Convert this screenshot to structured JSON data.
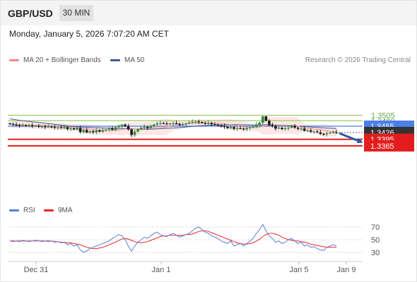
{
  "header": {
    "symbol": "GBP/USD",
    "timeframe": "30 MIN"
  },
  "datetime": "Monday, January 5, 2026 7:07:20 AM CET",
  "legend_main": [
    {
      "label": "MA 20 + Bollinger Bands",
      "color": "#f28b82"
    },
    {
      "label": "MA 50",
      "color": "#3d5a98"
    }
  ],
  "credit": "Research © 2026 Trading Central",
  "legend_rsi": [
    {
      "label": "RSI",
      "color": "#5b7fd6"
    },
    {
      "label": "9MA",
      "color": "#e8262a"
    }
  ],
  "colors": {
    "up": "#2e8b3a",
    "down": "#1a1a1a",
    "resistance": "#9ccc65",
    "pivot": "#4c7ee8",
    "support": "#e31d1d",
    "current": "#333333",
    "arrow": "#2a5aa8"
  },
  "chart_data": [
    {
      "type": "candlestick",
      "x_ticks": [
        "Dec 31",
        "Jan 1",
        "Jan 5",
        "Jan 9"
      ],
      "levels": [
        {
          "value": 1.3505,
          "label": "1.3505",
          "kind": "resistance"
        },
        {
          "value": 1.348,
          "label": "1.3480",
          "kind": "resistance"
        },
        {
          "value": 1.3455,
          "label": "1.3455",
          "kind": "pivot"
        },
        {
          "value": 1.3426,
          "label": "1.3426",
          "kind": "current"
        },
        {
          "value": 1.3395,
          "label": "1.3395",
          "kind": "support"
        },
        {
          "value": 1.3365,
          "label": "1.3365",
          "kind": "support"
        }
      ],
      "forecast": {
        "from": 1.3426,
        "to": 1.3365,
        "direction": "down"
      },
      "closes": [
        1.3465,
        1.3462,
        1.3461,
        1.3458,
        1.346,
        1.3457,
        1.3459,
        1.3455,
        1.3456,
        1.3452,
        1.3454,
        1.3451,
        1.3453,
        1.3452,
        1.3448,
        1.345,
        1.3446,
        1.345,
        1.3442,
        1.3445,
        1.344,
        1.3447,
        1.3428,
        1.3438,
        1.3426,
        1.3432,
        1.3427,
        1.3436,
        1.343,
        1.3437,
        1.344,
        1.3444,
        1.3438,
        1.345,
        1.3455,
        1.3462,
        1.3455,
        1.344,
        1.3415,
        1.343,
        1.3442,
        1.3448,
        1.3452,
        1.3447,
        1.3455,
        1.3463,
        1.3468,
        1.3469,
        1.3467,
        1.3466,
        1.3468,
        1.3469,
        1.3466,
        1.346,
        1.3463,
        1.3468,
        1.3472,
        1.3475,
        1.3476,
        1.3474,
        1.347,
        1.3466,
        1.347,
        1.3464,
        1.3463,
        1.3458,
        1.3456,
        1.3452,
        1.3446,
        1.3451,
        1.3443,
        1.3446,
        1.3444,
        1.344,
        1.3446,
        1.345,
        1.3452,
        1.3462,
        1.3471,
        1.35,
        1.348,
        1.346,
        1.3456,
        1.3444,
        1.3448,
        1.3442,
        1.3445,
        1.3448,
        1.3456,
        1.3448,
        1.3443,
        1.3444,
        1.3434,
        1.3436,
        1.343,
        1.3431,
        1.3427,
        1.342,
        1.3418,
        1.3423,
        1.3426,
        1.3428,
        1.3426
      ]
    },
    {
      "type": "line",
      "name_series": [
        "RSI",
        "9MA"
      ],
      "y_ticks": [
        70,
        50,
        30
      ],
      "rsi": [
        48,
        47,
        48,
        47,
        49,
        48,
        47,
        48,
        49,
        48,
        47,
        48,
        47,
        48,
        46,
        47,
        45,
        46,
        42,
        44,
        40,
        42,
        34,
        30,
        32,
        36,
        38,
        40,
        42,
        44,
        46,
        48,
        52,
        55,
        58,
        56,
        50,
        40,
        32,
        40,
        46,
        50,
        54,
        52,
        56,
        60,
        62,
        58,
        56,
        55,
        58,
        60,
        57,
        54,
        56,
        58,
        60,
        64,
        68,
        70,
        66,
        62,
        60,
        56,
        54,
        52,
        48,
        46,
        44,
        48,
        40,
        42,
        44,
        40,
        44,
        48,
        52,
        60,
        66,
        74,
        64,
        56,
        52,
        46,
        48,
        44,
        46,
        50,
        52,
        48,
        44,
        46,
        40,
        42,
        38,
        39,
        36,
        34,
        33,
        38,
        40,
        42,
        40
      ],
      "ma9": [
        48,
        48,
        48,
        48,
        48,
        48,
        48,
        48,
        48,
        48,
        48,
        48,
        48,
        48,
        47,
        47,
        46,
        46,
        45,
        45,
        44,
        43,
        42,
        40,
        38,
        37,
        36,
        36,
        37,
        38,
        40,
        42,
        44,
        46,
        49,
        51,
        52,
        51,
        49,
        47,
        46,
        45,
        46,
        47,
        49,
        51,
        53,
        55,
        56,
        56,
        57,
        57,
        57,
        57,
        57,
        58,
        58,
        59,
        61,
        63,
        64,
        64,
        63,
        61,
        59,
        57,
        55,
        53,
        51,
        49,
        47,
        45,
        44,
        43,
        43,
        44,
        45,
        48,
        51,
        55,
        58,
        60,
        60,
        59,
        57,
        54,
        52,
        50,
        49,
        48,
        48,
        47,
        46,
        45,
        43,
        42,
        41,
        40,
        39,
        38,
        38,
        38,
        38
      ]
    }
  ]
}
